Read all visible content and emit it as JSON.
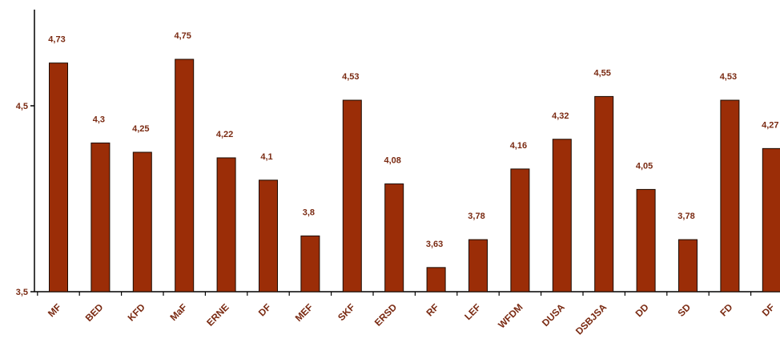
{
  "chart_data": {
    "type": "bar",
    "categories": [
      "MF",
      "BED",
      "KFD",
      "MaF",
      "ERNE",
      "DF",
      "MEF",
      "SKF",
      "ERSD",
      "RF",
      "LEF",
      "WFDM",
      "DUSA",
      "DSBJSA",
      "DD",
      "SD",
      "FD",
      "DF"
    ],
    "values": [
      4.73,
      4.3,
      4.25,
      4.75,
      4.22,
      4.1,
      3.8,
      4.53,
      4.08,
      3.63,
      3.78,
      4.16,
      4.32,
      4.55,
      4.05,
      3.78,
      4.53,
      4.27
    ],
    "value_labels": [
      "4,73",
      "4,3",
      "4,25",
      "4,75",
      "4,22",
      "4,1",
      "3,8",
      "4,53",
      "4,08",
      "3,63",
      "3,78",
      "4,16",
      "4,32",
      "4,55",
      "4,05",
      "3,78",
      "4,53",
      "4,27"
    ],
    "yticks": [
      3.5,
      4.5
    ],
    "ytick_labels": [
      "3,5",
      "4,5"
    ],
    "ylim": [
      3.5,
      5.0
    ],
    "grid": false,
    "legend": "none",
    "title": "",
    "xlabel": "",
    "ylabel": "",
    "colors": {
      "bar_fill": "#9b2d07",
      "bar_stroke": "#1a0a00",
      "label_text": "#7a2a12",
      "axis": "#000000"
    }
  }
}
